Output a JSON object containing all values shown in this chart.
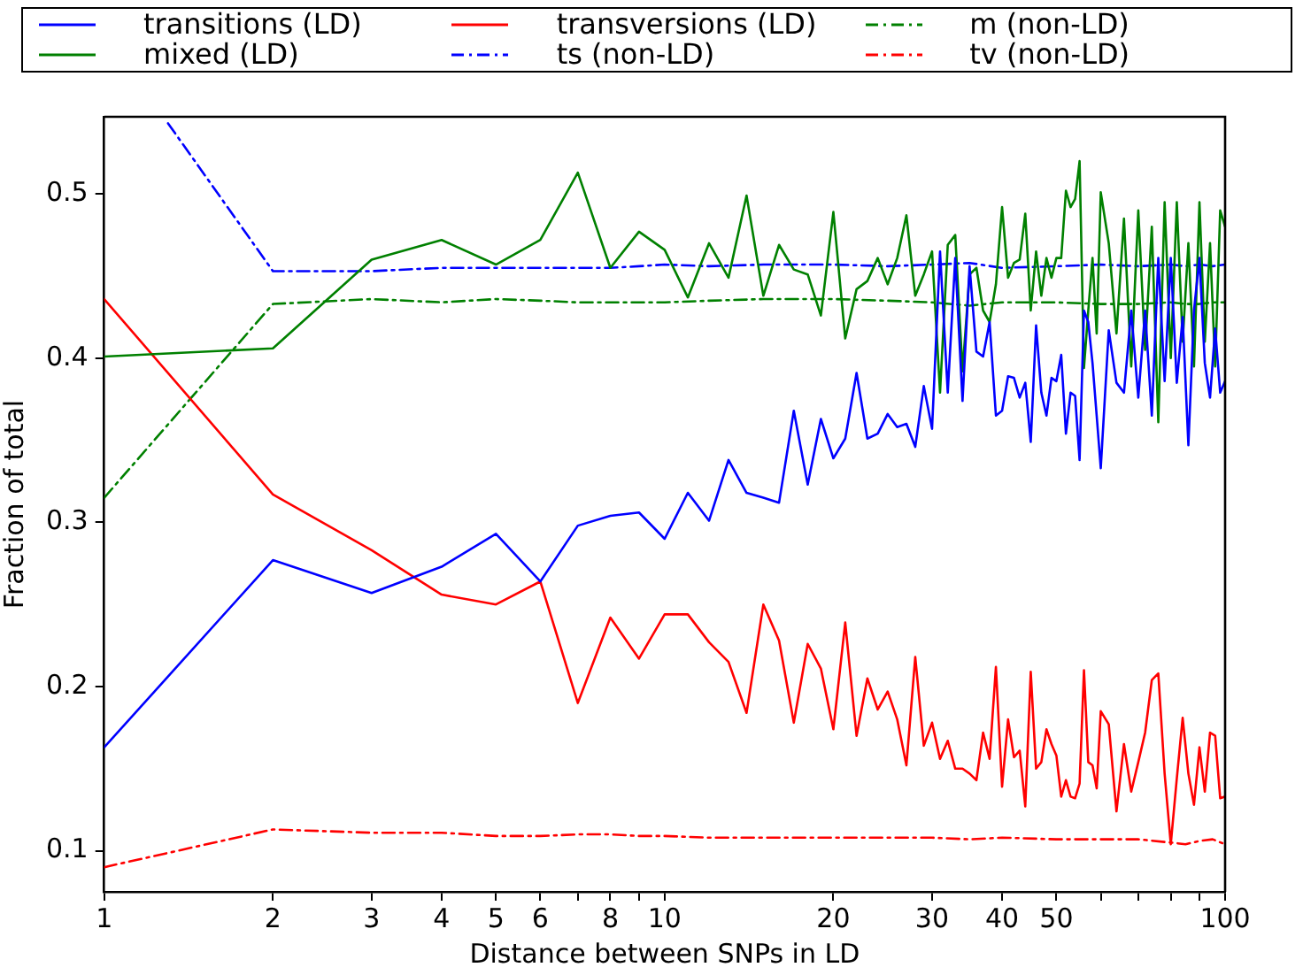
{
  "chart_data": {
    "type": "line",
    "xlabel": "Distance between SNPs in LD",
    "ylabel": "Fraction of total",
    "log": "x",
    "grid": false,
    "legend": "top",
    "marker": "none",
    "xlim": [
      1,
      100
    ],
    "xticks": [
      1,
      2,
      3,
      4,
      5,
      6,
      {
        "value": 7,
        "label": null
      },
      8,
      {
        "value": 9,
        "label": null
      },
      10,
      20,
      30,
      40,
      50,
      {
        "value": 60,
        "label": null
      },
      {
        "value": 70,
        "label": null
      },
      {
        "value": 80,
        "label": null
      },
      {
        "value": 90,
        "label": null
      },
      100
    ],
    "ylim": [
      0.075,
      0.547
    ],
    "yticks": [
      0.1,
      0.2,
      0.3,
      0.4,
      0.5
    ],
    "series": [
      {
        "name": "transitions (LD)",
        "color": "#0000ff",
        "line_style": "solid",
        "x": [
          1,
          2,
          3,
          4,
          5,
          6,
          7,
          8,
          9,
          10,
          11,
          12,
          13,
          14,
          15,
          16,
          17,
          18,
          19,
          20,
          21,
          22,
          23,
          24,
          25,
          26,
          27,
          28,
          29,
          30,
          31,
          32,
          33,
          34,
          35,
          36,
          37,
          38,
          39,
          40,
          41,
          42,
          43,
          44,
          45,
          46,
          47,
          48,
          49,
          50,
          51,
          52,
          53,
          54,
          55,
          56,
          57,
          58,
          59,
          60,
          62,
          64,
          66,
          68,
          70,
          72,
          74,
          76,
          78,
          80,
          82,
          84,
          86,
          88,
          90,
          92,
          94,
          96,
          98,
          100
        ],
        "values": [
          0.163,
          0.277,
          0.257,
          0.273,
          0.293,
          0.264,
          0.298,
          0.304,
          0.306,
          0.29,
          0.318,
          0.301,
          0.338,
          0.318,
          0.315,
          0.312,
          0.368,
          0.323,
          0.363,
          0.339,
          0.351,
          0.391,
          0.351,
          0.354,
          0.366,
          0.358,
          0.36,
          0.346,
          0.383,
          0.357,
          0.465,
          0.379,
          0.461,
          0.374,
          0.456,
          0.404,
          0.401,
          0.422,
          0.365,
          0.368,
          0.389,
          0.388,
          0.376,
          0.385,
          0.349,
          0.42,
          0.379,
          0.365,
          0.388,
          0.386,
          0.402,
          0.354,
          0.379,
          0.377,
          0.338,
          0.429,
          0.422,
          0.397,
          0.365,
          0.333,
          0.417,
          0.385,
          0.379,
          0.429,
          0.376,
          0.429,
          0.365,
          0.461,
          0.386,
          0.461,
          0.385,
          0.425,
          0.347,
          0.429,
          0.461,
          0.397,
          0.376,
          0.418,
          0.379,
          0.386
        ]
      },
      {
        "name": "mixed (LD)",
        "color": "#008000",
        "line_style": "solid",
        "x": [
          1,
          2,
          3,
          4,
          5,
          6,
          7,
          8,
          9,
          10,
          11,
          12,
          13,
          14,
          15,
          16,
          17,
          18,
          19,
          20,
          21,
          22,
          23,
          24,
          25,
          26,
          27,
          28,
          29,
          30,
          31,
          32,
          33,
          34,
          35,
          36,
          37,
          38,
          39,
          40,
          41,
          42,
          43,
          44,
          45,
          46,
          47,
          48,
          49,
          50,
          51,
          52,
          53,
          54,
          55,
          56,
          57,
          58,
          59,
          60,
          62,
          64,
          66,
          68,
          70,
          72,
          74,
          76,
          78,
          80,
          82,
          84,
          86,
          88,
          90,
          92,
          94,
          96,
          98,
          100
        ],
        "values": [
          0.401,
          0.406,
          0.46,
          0.472,
          0.457,
          0.472,
          0.513,
          0.455,
          0.477,
          0.466,
          0.437,
          0.47,
          0.449,
          0.499,
          0.438,
          0.469,
          0.454,
          0.451,
          0.426,
          0.489,
          0.412,
          0.442,
          0.447,
          0.461,
          0.445,
          0.461,
          0.487,
          0.438,
          0.451,
          0.465,
          0.379,
          0.469,
          0.475,
          0.392,
          0.451,
          0.455,
          0.429,
          0.422,
          0.445,
          0.492,
          0.449,
          0.458,
          0.46,
          0.488,
          0.429,
          0.465,
          0.438,
          0.461,
          0.449,
          0.461,
          0.461,
          0.502,
          0.492,
          0.497,
          0.52,
          0.394,
          0.429,
          0.461,
          0.415,
          0.501,
          0.47,
          0.415,
          0.485,
          0.395,
          0.49,
          0.405,
          0.48,
          0.361,
          0.495,
          0.4,
          0.495,
          0.41,
          0.47,
          0.395,
          0.495,
          0.41,
          0.47,
          0.395,
          0.49,
          0.48
        ]
      },
      {
        "name": "transversions (LD)",
        "color": "#ff0000",
        "line_style": "solid",
        "x": [
          1,
          2,
          3,
          4,
          5,
          6,
          7,
          8,
          9,
          10,
          11,
          12,
          13,
          14,
          15,
          16,
          17,
          18,
          19,
          20,
          21,
          22,
          23,
          24,
          25,
          26,
          27,
          28,
          29,
          30,
          31,
          32,
          33,
          34,
          35,
          36,
          37,
          38,
          39,
          40,
          41,
          42,
          43,
          44,
          45,
          46,
          47,
          48,
          49,
          50,
          51,
          52,
          53,
          54,
          55,
          56,
          57,
          58,
          59,
          60,
          62,
          64,
          66,
          68,
          70,
          72,
          74,
          76,
          78,
          80,
          82,
          84,
          86,
          88,
          90,
          92,
          94,
          96,
          98,
          100
        ],
        "values": [
          0.436,
          0.317,
          0.283,
          0.256,
          0.25,
          0.264,
          0.19,
          0.242,
          0.217,
          0.244,
          0.244,
          0.227,
          0.215,
          0.184,
          0.25,
          0.228,
          0.178,
          0.226,
          0.211,
          0.174,
          0.239,
          0.17,
          0.205,
          0.186,
          0.197,
          0.18,
          0.152,
          0.218,
          0.164,
          0.178,
          0.156,
          0.167,
          0.15,
          0.15,
          0.147,
          0.143,
          0.172,
          0.156,
          0.212,
          0.139,
          0.18,
          0.157,
          0.161,
          0.127,
          0.209,
          0.15,
          0.154,
          0.174,
          0.165,
          0.158,
          0.133,
          0.143,
          0.133,
          0.132,
          0.141,
          0.21,
          0.154,
          0.152,
          0.138,
          0.185,
          0.177,
          0.124,
          0.165,
          0.136,
          0.154,
          0.172,
          0.204,
          0.208,
          0.147,
          0.104,
          0.144,
          0.181,
          0.147,
          0.128,
          0.163,
          0.136,
          0.172,
          0.17,
          0.132,
          0.133
        ]
      },
      {
        "name": "ts (non-LD)",
        "color": "#0000ff",
        "line_style": "dashdot",
        "x": [
          1.3,
          2,
          3,
          4,
          5,
          6,
          7,
          8,
          9,
          10,
          12,
          15,
          20,
          25,
          30,
          35,
          40,
          50,
          60,
          70,
          80,
          85,
          90,
          95,
          100
        ],
        "values": [
          0.543,
          0.453,
          0.453,
          0.455,
          0.455,
          0.455,
          0.455,
          0.455,
          0.456,
          0.457,
          0.456,
          0.457,
          0.457,
          0.456,
          0.457,
          0.458,
          0.455,
          0.456,
          0.457,
          0.456,
          0.457,
          0.456,
          0.457,
          0.456,
          0.457
        ]
      },
      {
        "name": "m (non-LD)",
        "color": "#008000",
        "line_style": "dashdot",
        "x": [
          1,
          2,
          3,
          4,
          5,
          6,
          7,
          8,
          9,
          10,
          12,
          15,
          20,
          25,
          30,
          35,
          40,
          50,
          60,
          70,
          80,
          85,
          90,
          95,
          100
        ],
        "values": [
          0.315,
          0.433,
          0.436,
          0.434,
          0.436,
          0.435,
          0.434,
          0.434,
          0.434,
          0.434,
          0.435,
          0.436,
          0.436,
          0.435,
          0.434,
          0.432,
          0.434,
          0.434,
          0.433,
          0.433,
          0.434,
          0.433,
          0.433,
          0.434,
          0.434
        ]
      },
      {
        "name": "tv (non-LD)",
        "color": "#ff0000",
        "line_style": "dashdot",
        "x": [
          1,
          2,
          3,
          4,
          5,
          6,
          7,
          8,
          9,
          10,
          12,
          15,
          20,
          25,
          30,
          35,
          40,
          50,
          60,
          70,
          80,
          85,
          90,
          95,
          100
        ],
        "values": [
          0.09,
          0.113,
          0.111,
          0.111,
          0.109,
          0.109,
          0.11,
          0.11,
          0.109,
          0.109,
          0.108,
          0.108,
          0.108,
          0.108,
          0.108,
          0.107,
          0.108,
          0.107,
          0.107,
          0.107,
          0.105,
          0.104,
          0.106,
          0.107,
          0.104
        ]
      }
    ]
  }
}
